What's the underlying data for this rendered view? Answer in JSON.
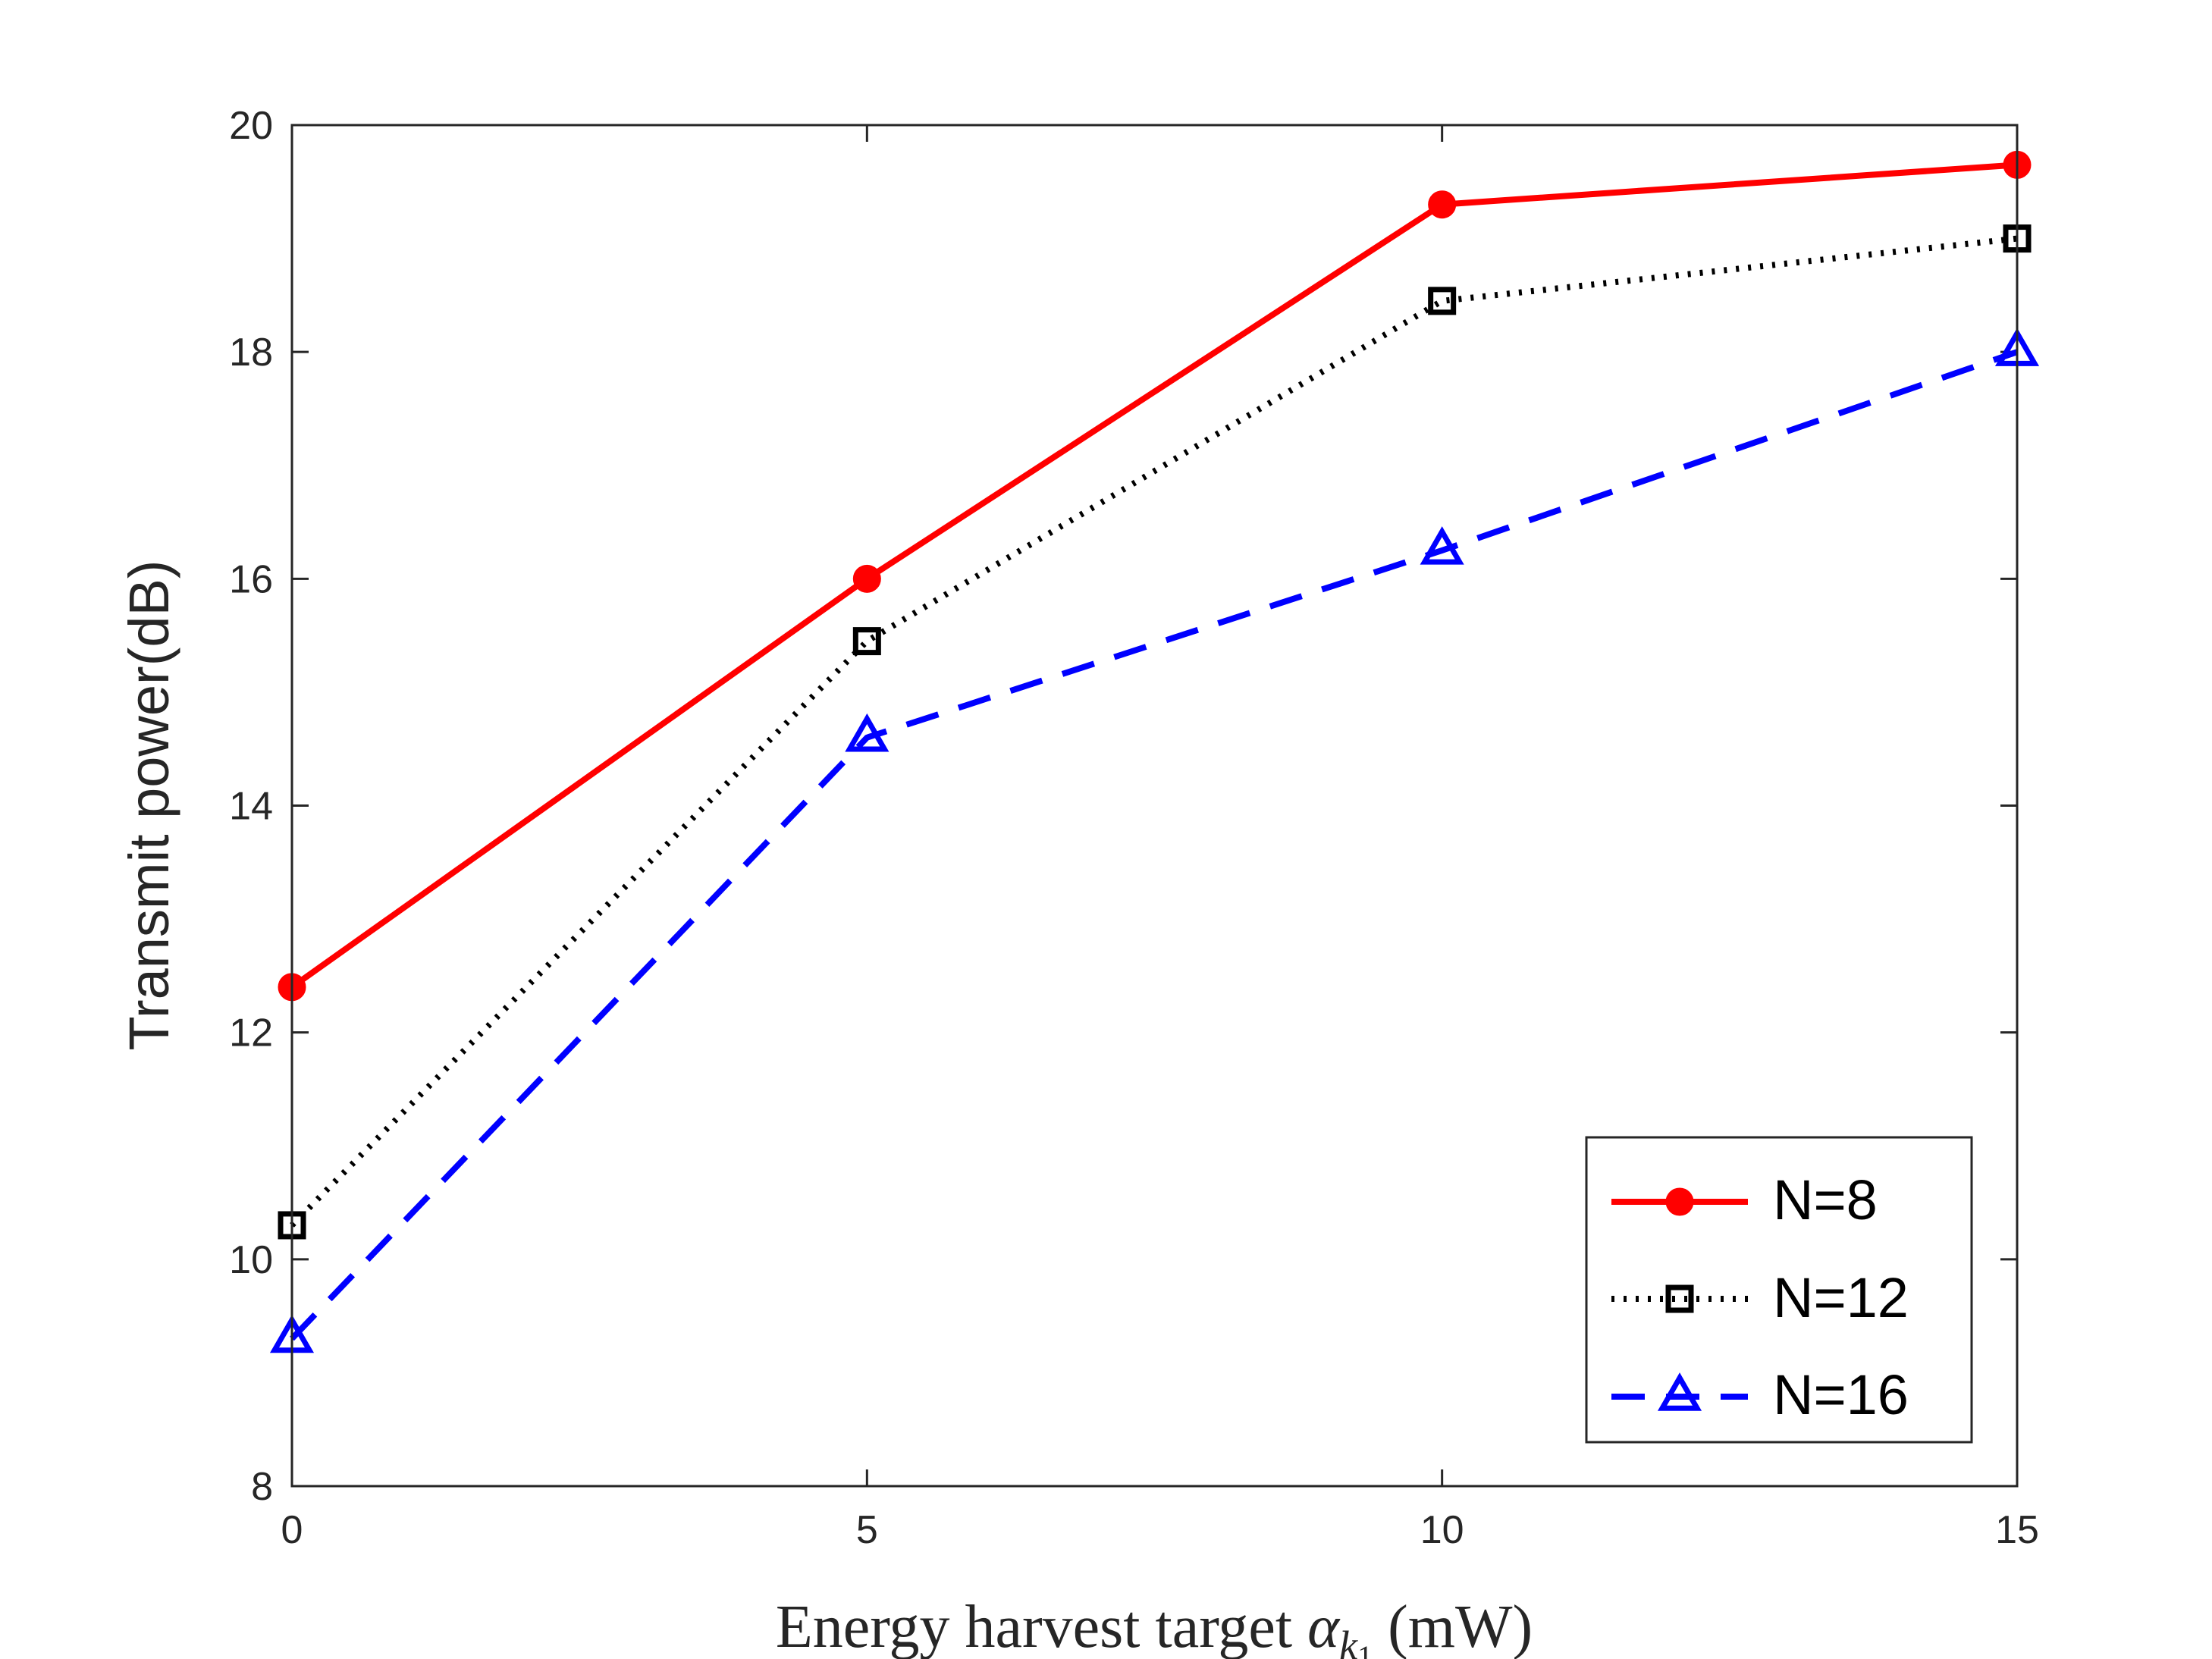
{
  "chart_data": {
    "type": "line",
    "x": [
      0,
      5,
      10,
      15
    ],
    "xlim": [
      0,
      15
    ],
    "ylim": [
      8,
      20
    ],
    "xticks": [
      "0",
      "5",
      "10",
      "15"
    ],
    "yticks": [
      "8",
      "10",
      "12",
      "14",
      "16",
      "18",
      "20"
    ],
    "xlabel": {
      "prefix": "Energy harvest target ",
      "symbol": "α",
      "sub": "k",
      "subsub": "1",
      "suffix": " (mW)"
    },
    "ylabel": "Transmit power(dB)",
    "grid": false,
    "legend_position": "bottom-right",
    "series": [
      {
        "name": "N=8",
        "values": [
          12.4,
          16.0,
          19.3,
          19.65
        ],
        "color": "#ff0000",
        "line_style": "solid",
        "marker": "filled-circle"
      },
      {
        "name": "N=12",
        "values": [
          10.3,
          15.45,
          18.45,
          19.0
        ],
        "color": "#000000",
        "line_style": "dotted",
        "marker": "open-square"
      },
      {
        "name": "N=16",
        "values": [
          9.3,
          14.6,
          16.25,
          18.0
        ],
        "color": "#0000ff",
        "line_style": "dashed",
        "marker": "open-triangle"
      }
    ]
  }
}
